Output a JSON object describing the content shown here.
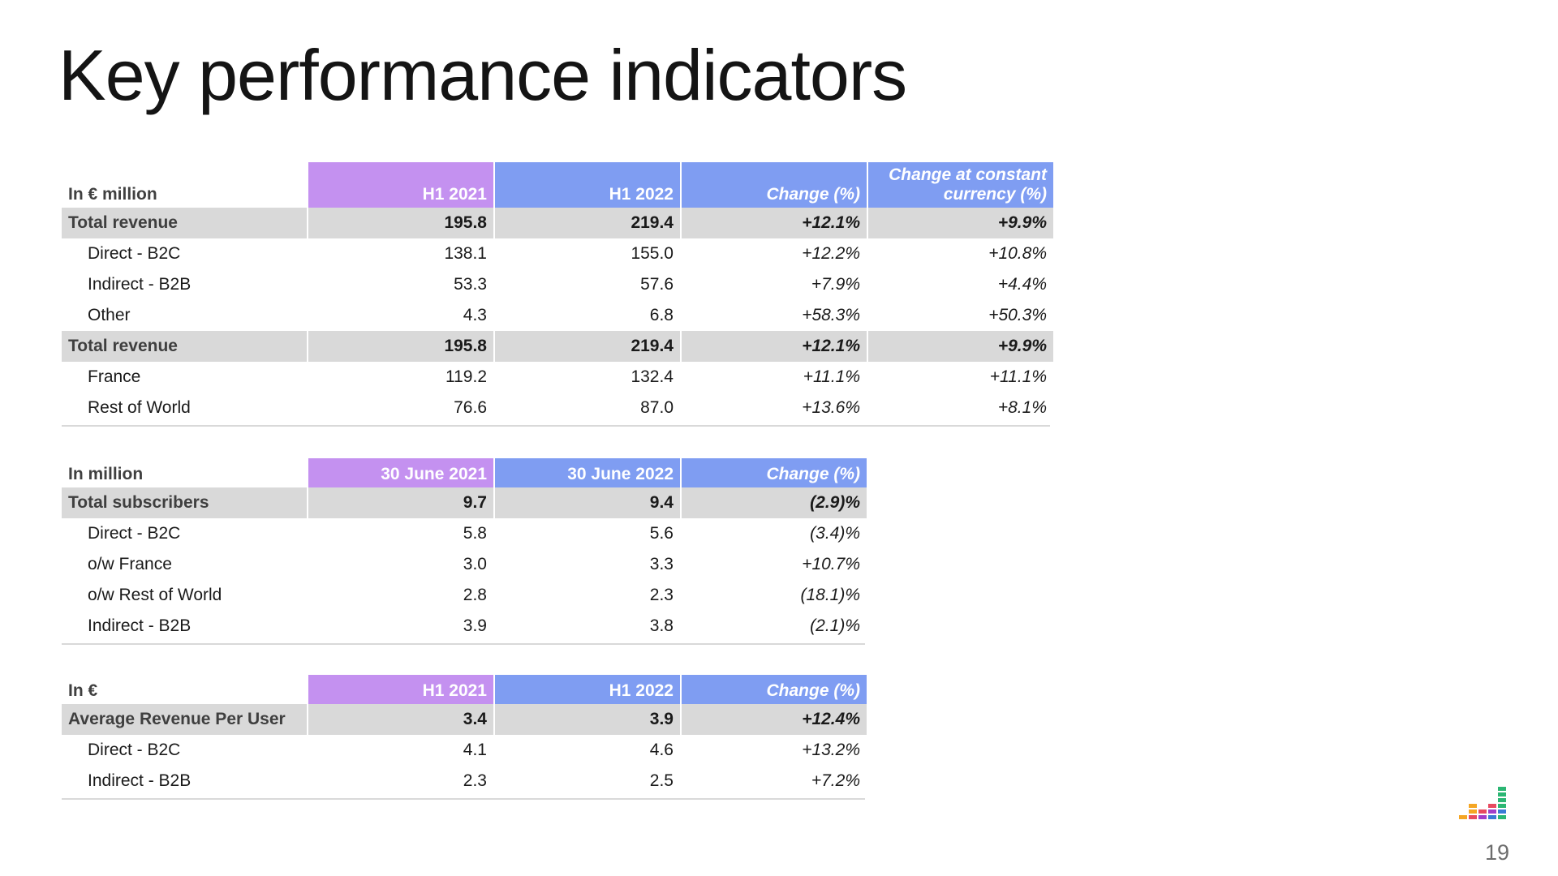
{
  "slide": {
    "title": "Key performance indicators",
    "page_number": "19",
    "logo_icon": "equalizer-bars-logo"
  },
  "colors": {
    "h1_2021_header": "#c491f0",
    "h1_2022_header": "#7f9df2",
    "total_row_fill": "#d9d9d9",
    "header_text": "#ffffff"
  },
  "revenue_table": {
    "headers": [
      "In € million",
      "H1 2021",
      "H1 2022",
      "Change  (%)",
      "Change at constant currency (%)"
    ],
    "rows": [
      {
        "label": "Total revenue",
        "total": true,
        "values": [
          "195.8",
          "219.4",
          "+12.1%",
          "+9.9%"
        ]
      },
      {
        "label": "Direct - B2C",
        "total": false,
        "values": [
          "138.1",
          "155.0",
          "+12.2%",
          "+10.8%"
        ]
      },
      {
        "label": "Indirect - B2B",
        "total": false,
        "values": [
          "53.3",
          "57.6",
          "+7.9%",
          "+4.4%"
        ]
      },
      {
        "label": "Other",
        "total": false,
        "values": [
          "4.3",
          "6.8",
          "+58.3%",
          "+50.3%"
        ]
      },
      {
        "label": "Total revenue",
        "total": true,
        "values": [
          "195.8",
          "219.4",
          "+12.1%",
          "+9.9%"
        ]
      },
      {
        "label": "France",
        "total": false,
        "values": [
          "119.2",
          "132.4",
          "+11.1%",
          "+11.1%"
        ]
      },
      {
        "label": "Rest of World",
        "total": false,
        "values": [
          "76.6",
          "87.0",
          "+13.6%",
          "+8.1%"
        ]
      }
    ]
  },
  "subscribers_table": {
    "headers": [
      "In million",
      "30 June 2021",
      "30 June 2022",
      "Change (%)"
    ],
    "rows": [
      {
        "label": "Total subscribers",
        "total": true,
        "values": [
          "9.7",
          "9.4",
          "(2.9)%"
        ]
      },
      {
        "label": "Direct - B2C",
        "total": false,
        "values": [
          "5.8",
          "5.6",
          "(3.4)%"
        ]
      },
      {
        "label": "o/w France",
        "total": false,
        "values": [
          "3.0",
          "3.3",
          "+10.7%"
        ]
      },
      {
        "label": "o/w Rest of World",
        "total": false,
        "values": [
          "2.8",
          "2.3",
          "(18.1)%"
        ]
      },
      {
        "label": "Indirect - B2B",
        "total": false,
        "values": [
          "3.9",
          "3.8",
          "(2.1)%"
        ]
      }
    ]
  },
  "arpu_table": {
    "headers": [
      "In €",
      "H1 2021",
      "H1 2022",
      "Change (%)"
    ],
    "rows": [
      {
        "label": "Average Revenue Per User",
        "total": true,
        "values": [
          "3.4",
          "3.9",
          "+12.4%"
        ]
      },
      {
        "label": "Direct - B2C",
        "total": false,
        "values": [
          "4.1",
          "4.6",
          "+13.2%"
        ]
      },
      {
        "label": "Indirect - B2B",
        "total": false,
        "values": [
          "2.3",
          "2.5",
          "+7.2%"
        ]
      }
    ]
  }
}
